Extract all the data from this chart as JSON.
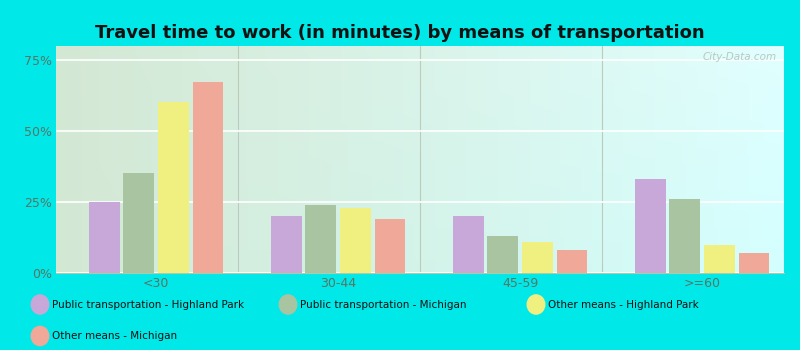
{
  "title": "Travel time to work (in minutes) by means of transportation",
  "categories": [
    "<30",
    "30-44",
    "45-59",
    ">=60"
  ],
  "series": {
    "Public transportation - Highland Park": [
      25,
      20,
      20,
      33
    ],
    "Public transportation - Michigan": [
      35,
      24,
      13,
      26
    ],
    "Other means - Highland Park": [
      60,
      23,
      11,
      10
    ],
    "Other means - Michigan": [
      67,
      19,
      8,
      7
    ]
  },
  "colors": {
    "Public transportation - Highland Park": "#c8a8d8",
    "Public transportation - Michigan": "#a8c4a0",
    "Other means - Highland Park": "#f0f080",
    "Other means - Michigan": "#f0a898"
  },
  "yticks": [
    0,
    25,
    50,
    75
  ],
  "ytick_labels": [
    "0%",
    "25%",
    "50%",
    "75%"
  ],
  "ylim": [
    0,
    80
  ],
  "outer_background": "#00e8e8",
  "chart_bg_left": "#d8e8d0",
  "chart_bg_right": "#e8f4e8",
  "title_fontsize": 13,
  "watermark": "City-Data.com",
  "legend_order": [
    "Public transportation - Highland Park",
    "Public transportation - Michigan",
    "Other means - Highland Park",
    "Other means - Michigan"
  ]
}
